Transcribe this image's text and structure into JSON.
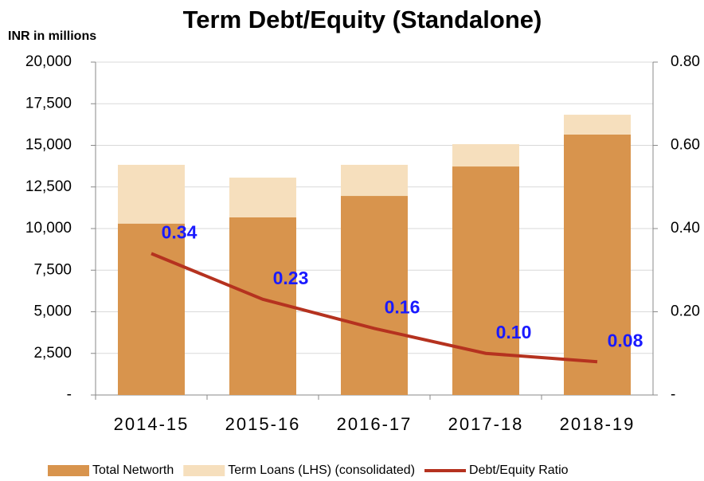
{
  "chart_data": {
    "type": "bar",
    "title": "Term Debt/Equity (Standalone)",
    "y_label": "INR in millions",
    "categories": [
      "2014-15",
      "2015-16",
      "2016-17",
      "2017-18",
      "2018-19"
    ],
    "series": [
      {
        "name": "Total Networth",
        "color": "#d8944d",
        "values": [
          10300,
          10670,
          11960,
          13730,
          15650
        ]
      },
      {
        "name": "Term Loans (LHS) (consolidated)",
        "color": "#f6dfbd",
        "values": [
          3530,
          2390,
          1870,
          1340,
          1190
        ]
      },
      {
        "name": "Debt/Equity Ratio",
        "type": "line",
        "axis": "y2",
        "color": "#b5321f",
        "values": [
          0.34,
          0.23,
          0.16,
          0.1,
          0.08
        ],
        "value_labels": [
          "0.34",
          "0.23",
          "0.16",
          "0.10",
          "0.08"
        ],
        "label_color": "#1a1aff"
      }
    ],
    "ylim": [
      0,
      20000
    ],
    "yticks": [
      {
        "value": 0,
        "label": "-"
      },
      {
        "value": 2500,
        "label": "2,500"
      },
      {
        "value": 5000,
        "label": "5,000"
      },
      {
        "value": 7500,
        "label": "7,500"
      },
      {
        "value": 10000,
        "label": "10,000"
      },
      {
        "value": 12500,
        "label": "12,500"
      },
      {
        "value": 15000,
        "label": "15,000"
      },
      {
        "value": 17500,
        "label": "17,500"
      },
      {
        "value": 20000,
        "label": "20,000"
      }
    ],
    "y2lim": [
      0,
      0.8
    ],
    "y2ticks": [
      {
        "value": 0,
        "label": "-"
      },
      {
        "value": 0.2,
        "label": "0.20"
      },
      {
        "value": 0.4,
        "label": "0.40"
      },
      {
        "value": 0.6,
        "label": "0.60"
      },
      {
        "value": 0.8,
        "label": "0.80"
      }
    ],
    "grid": true,
    "legend": "bottom"
  }
}
